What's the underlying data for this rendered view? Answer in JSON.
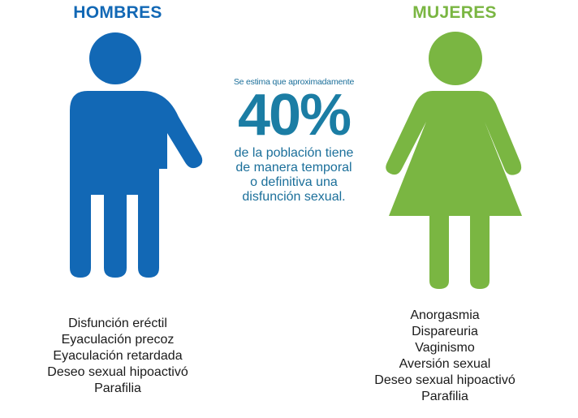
{
  "men": {
    "heading": "HOMBRES",
    "color": "#1268b5",
    "icon": "male-figure-icon",
    "conditions": [
      "Disfunción eréctil",
      "Eyaculación precoz",
      "Eyaculación retardada",
      "Deseo sexual hipoactivó",
      "Parafilia"
    ]
  },
  "women": {
    "heading": "MUJERES",
    "color": "#7ab642",
    "icon": "female-figure-icon",
    "conditions": [
      "Anorgasmia",
      "Dispareuria",
      "Vaginismo",
      "Aversión sexual",
      "Deseo sexual hipoactivó",
      "Parafilia"
    ]
  },
  "center": {
    "intro": "Se estima que aproximadamente",
    "percentage": "40%",
    "description_lines": [
      "de la población tiene",
      "de manera  temporal",
      "o definitiva  una",
      "disfunción sexual."
    ],
    "color": "#1b7da4"
  }
}
